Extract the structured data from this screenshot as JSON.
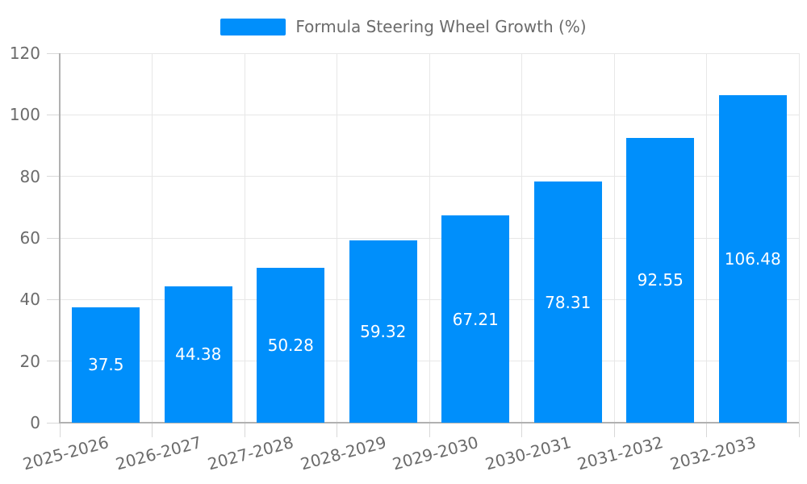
{
  "legend": {
    "label": "Formula Steering Wheel Growth (%)"
  },
  "colors": {
    "bar": "#008FFB",
    "grid": "#e7e7e7",
    "tick": "#d8d8d8",
    "axis": "#b1b1b1",
    "axis_label": "#6b6b6b",
    "data_label": "#ffffff",
    "background": "#ffffff"
  },
  "chart_data": {
    "type": "bar",
    "title": "Formula Steering Wheel Growth (%)",
    "categories": [
      "2025-2026",
      "2026-2027",
      "2027-2028",
      "2028-2029",
      "2029-2030",
      "2030-2031",
      "2031-2032",
      "2032-2033"
    ],
    "values": [
      37.5,
      44.38,
      50.28,
      59.32,
      67.21,
      78.31,
      92.55,
      106.48
    ],
    "xlabel": "",
    "ylabel": "",
    "ylim": [
      0,
      120
    ],
    "yticks": [
      0,
      20,
      40,
      60,
      80,
      100,
      120
    ],
    "grid": true,
    "legend_position": "top",
    "x_label_rotation_deg": -15,
    "data_labels": "inside-center"
  }
}
